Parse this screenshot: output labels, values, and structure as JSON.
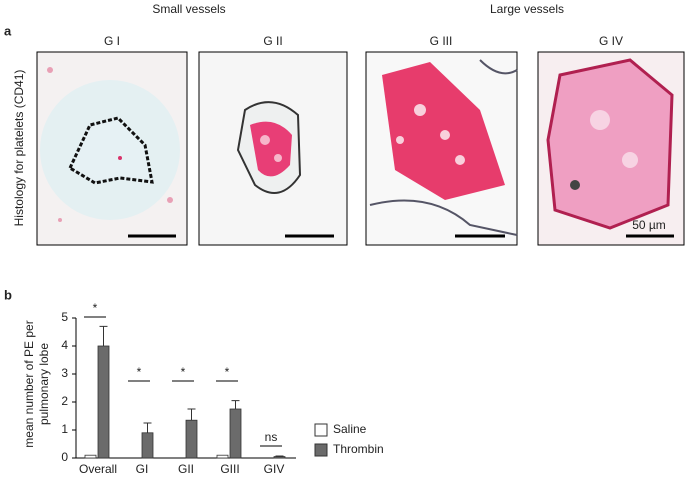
{
  "figure": {
    "panel_a_label": "a",
    "panel_b_label": "b",
    "group_small": "Small vessels",
    "group_large": "Large vessels",
    "row_label": "Histology for platelets (CD41)",
    "images": [
      "G I",
      "G II",
      "G III",
      "G IV"
    ],
    "scale_label": "50 µm"
  },
  "chart_data": {
    "type": "bar",
    "y_label_lines": [
      "mean number of PE per",
      "pulmonary lobe"
    ],
    "categories": [
      "Overall",
      "GI",
      "GII",
      "GIII",
      "GIV"
    ],
    "series": [
      {
        "name": "Saline",
        "color": "#ffffff",
        "values": [
          0.1,
          0,
          0,
          0.1,
          0
        ]
      },
      {
        "name": "Thrombin",
        "color": "#6b6b6b",
        "values": [
          4.0,
          0.9,
          1.35,
          1.75,
          0.05
        ],
        "errors": [
          0.7,
          0.35,
          0.4,
          0.3,
          0.02
        ]
      }
    ],
    "annotations": [
      "*",
      "*",
      "*",
      "*",
      "ns"
    ],
    "ylim": [
      0,
      5
    ],
    "yticks": [
      0,
      1,
      2,
      3,
      4,
      5
    ]
  }
}
